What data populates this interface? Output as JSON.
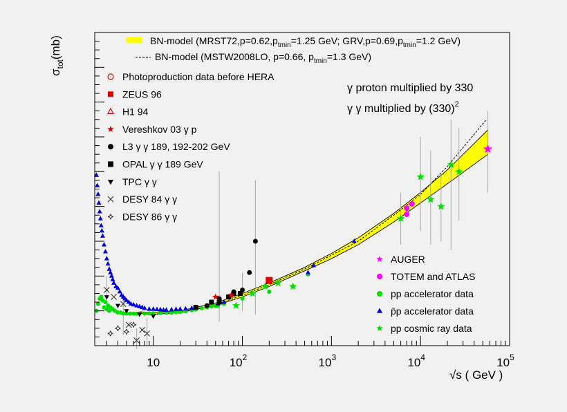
{
  "chart_data": {
    "type": "scatter",
    "title": "",
    "ylabel_main": "σ",
    "ylabel_sub": "tot",
    "ylabel_unit": "(mb)",
    "xlabel": "√s ( GeV )",
    "xscale": "log",
    "xlim": [
      2.2,
      100000
    ],
    "ylim": [
      20,
      200
    ],
    "yticks": [
      20,
      40,
      60,
      80,
      100,
      120,
      140,
      160,
      180,
      200
    ],
    "xticks": [
      {
        "value": 10,
        "base": "10",
        "exp": ""
      },
      {
        "value": 100,
        "base": "10",
        "exp": "2"
      },
      {
        "value": 1000,
        "base": "10",
        "exp": "3"
      },
      {
        "value": 10000,
        "base": "10",
        "exp": "4"
      },
      {
        "value": 100000,
        "base": "10",
        "exp": "5"
      }
    ],
    "annotations": [
      {
        "main": "γ proton multiplied by 330",
        "sup": ""
      },
      {
        "main": "γ γ multiplied by (330)",
        "sup": "2"
      }
    ],
    "top_legend": [
      {
        "pre": "BN-model (MRST72,p=0.62,p",
        "sub": "tmin",
        "post": "=1.25 GeV; GRV,p=0.69,p",
        "sub2": "tmin",
        "post2": "=1.2 GeV)"
      },
      {
        "pre": "BN-model (MSTW2008LO, p=0.66, p",
        "sub": "tmin",
        "post": "=1.3 GeV)",
        "sub2": "",
        "post2": ""
      }
    ],
    "left_legend": [
      {
        "label": "Photoproduction data before HERA",
        "marker": "open-circle",
        "color": "#e00000"
      },
      {
        "label": "ZEUS 96",
        "marker": "square",
        "color": "#e00000"
      },
      {
        "label": "H1 94",
        "marker": "open-triangle",
        "color": "#e00000"
      },
      {
        "label": "Vereshkov 03 γ p",
        "marker": "star",
        "color": "#e00000"
      },
      {
        "label": "L3 γ γ  189, 192-202 GeV",
        "marker": "circle",
        "color": "#000000"
      },
      {
        "label": "OPAL γ γ 189 GeV",
        "marker": "square",
        "color": "#000000"
      },
      {
        "label": "TPC γ γ",
        "marker": "down-triangle",
        "color": "#000000"
      },
      {
        "label": "DESY 84 γ γ",
        "marker": "cross",
        "color": "#333333"
      },
      {
        "label": "DESY 86 γ γ",
        "marker": "open-plus",
        "color": "#333333"
      }
    ],
    "right_legend": [
      {
        "label": "AUGER",
        "marker": "star",
        "color": "#ff00ff"
      },
      {
        "label": "TOTEM and ATLAS",
        "marker": "circle",
        "color": "#ff00ff"
      },
      {
        "label": "pp accelerator data",
        "marker": "circle",
        "color": "#00e000"
      },
      {
        "label": "p̄p accelerator data",
        "marker": "triangle",
        "color": "#0000dd"
      },
      {
        "label": "pp cosmic ray data",
        "marker": "star",
        "color": "#00e000"
      }
    ],
    "band": {
      "name": "BN-model (MRST72)",
      "color": "#ffff00",
      "x": [
        7,
        10,
        20,
        50,
        100,
        200,
        500,
        1000,
        2000,
        5000,
        10000,
        20000,
        57000
      ],
      "low": [
        38.5,
        38,
        39,
        43,
        48,
        54,
        63,
        70,
        78,
        91,
        102,
        113,
        130
      ],
      "high": [
        39.5,
        39,
        40,
        44.5,
        50,
        56,
        65,
        73,
        82,
        96,
        108,
        121,
        144
      ]
    },
    "dashed_curve": {
      "x": [
        7,
        10,
        20,
        50,
        100,
        200,
        500,
        1000,
        2000,
        5000,
        10000,
        20000,
        55000
      ],
      "y": [
        38.5,
        38,
        39.5,
        43.5,
        49,
        55,
        64,
        72,
        80,
        95,
        107,
        123,
        150
      ]
    },
    "series": [
      {
        "marker": "circle",
        "color": "#00e000",
        "size": 3,
        "x": [
          2.3,
          2.4,
          2.5,
          2.6,
          2.7,
          2.8,
          2.9,
          3.0,
          3.1,
          3.2,
          3.3,
          3.5,
          3.7,
          4.0,
          4.3,
          4.6,
          5.0,
          5.5,
          6.0,
          6.5,
          7.0,
          8.0,
          9.0,
          10,
          12,
          14,
          16,
          18,
          20,
          23,
          27,
          30,
          35,
          40,
          45,
          50,
          53,
          62,
          100,
          200,
          546
        ],
        "y": [
          40,
          44,
          47,
          48,
          46,
          42,
          45,
          41,
          43,
          40,
          42,
          41,
          40,
          39,
          39,
          38.5,
          38.5,
          38.4,
          38.4,
          38.4,
          38.5,
          38.4,
          38.5,
          38.6,
          38.7,
          38.9,
          39,
          39.2,
          39.4,
          39.8,
          40.3,
          40.8,
          41.5,
          42,
          42.5,
          42.8,
          43,
          44,
          47,
          51,
          61
        ]
      },
      {
        "marker": "triangle",
        "color": "#0000dd",
        "size": 3.5,
        "x": [
          2.3,
          2.35,
          2.4,
          2.45,
          2.5,
          2.55,
          2.6,
          2.65,
          2.7,
          2.8,
          2.9,
          3.0,
          3.1,
          3.2,
          3.3,
          3.4,
          3.5,
          3.6,
          3.8,
          4.0,
          4.2,
          4.4,
          4.6,
          4.8,
          5.0,
          5.3,
          5.6,
          6.0,
          6.5,
          7.0,
          7.5,
          8.0,
          9.0,
          10,
          11,
          12,
          13,
          14,
          16,
          18,
          20,
          23,
          27,
          30,
          53,
          62,
          546,
          630,
          1800
        ],
        "y": [
          118,
          112,
          107,
          102,
          97,
          93,
          89,
          86,
          83,
          78,
          74,
          70,
          67,
          64,
          62,
          60,
          58,
          56,
          54,
          53,
          51,
          49,
          48,
          47,
          46,
          45,
          44,
          43.5,
          43,
          42.5,
          42,
          41.5,
          41,
          41,
          40.8,
          40.7,
          40.5,
          40.5,
          40.7,
          40.9,
          41,
          41.2,
          41.5,
          42,
          44,
          45,
          62,
          66,
          80
        ]
      },
      {
        "marker": "circle",
        "color": "#000000",
        "size": 3.5,
        "x": [
          40,
          55,
          80,
          100,
          120,
          140
        ],
        "y": [
          43,
          47,
          51,
          52,
          62,
          80
        ]
      },
      {
        "marker": "square",
        "color": "#000000",
        "size": 3.5,
        "x": [
          30,
          45,
          55,
          70,
          80,
          95
        ],
        "y": [
          42,
          45,
          45,
          48,
          50,
          50
        ]
      },
      {
        "marker": "down-triangle",
        "color": "#000000",
        "size": 3.5,
        "x": [
          3,
          4,
          5,
          7,
          10
        ],
        "y": [
          48,
          43,
          40,
          38,
          37
        ]
      },
      {
        "marker": "cross",
        "color": "#333333",
        "size": 4,
        "x": [
          3,
          3.6,
          4.6,
          5.3,
          6.5,
          7.5,
          8.5
        ],
        "y": [
          52,
          48,
          44,
          32,
          23,
          29,
          27
        ]
      },
      {
        "marker": "open-plus",
        "color": "#333333",
        "size": 4,
        "x": [
          3.3,
          4,
          5,
          6
        ],
        "y": [
          27,
          30,
          28,
          32
        ]
      },
      {
        "marker": "square",
        "color": "#e00000",
        "size": 5,
        "x": [
          200
        ],
        "y": [
          57.5
        ]
      },
      {
        "marker": "star",
        "color": "#e00000",
        "size": 5,
        "x": [
          50,
          75
        ],
        "y": [
          48,
          49
        ]
      },
      {
        "marker": "circle",
        "color": "#ff00ff",
        "size": 4,
        "x": [
          7000,
          7000,
          8000
        ],
        "y": [
          99,
          95.5,
          101.5
        ]
      },
      {
        "marker": "star",
        "color": "#ff00ff",
        "size": 7,
        "x": [
          57000
        ],
        "y": [
          133
        ]
      },
      {
        "marker": "star",
        "color": "#00e000",
        "size": 6,
        "x": [
          85,
          130,
          180,
          250,
          370,
          6000,
          10000,
          13000,
          17000,
          22000,
          27000
        ],
        "y": [
          43,
          50,
          54,
          56,
          54,
          93,
          117,
          104,
          100,
          124,
          120
        ]
      }
    ]
  }
}
